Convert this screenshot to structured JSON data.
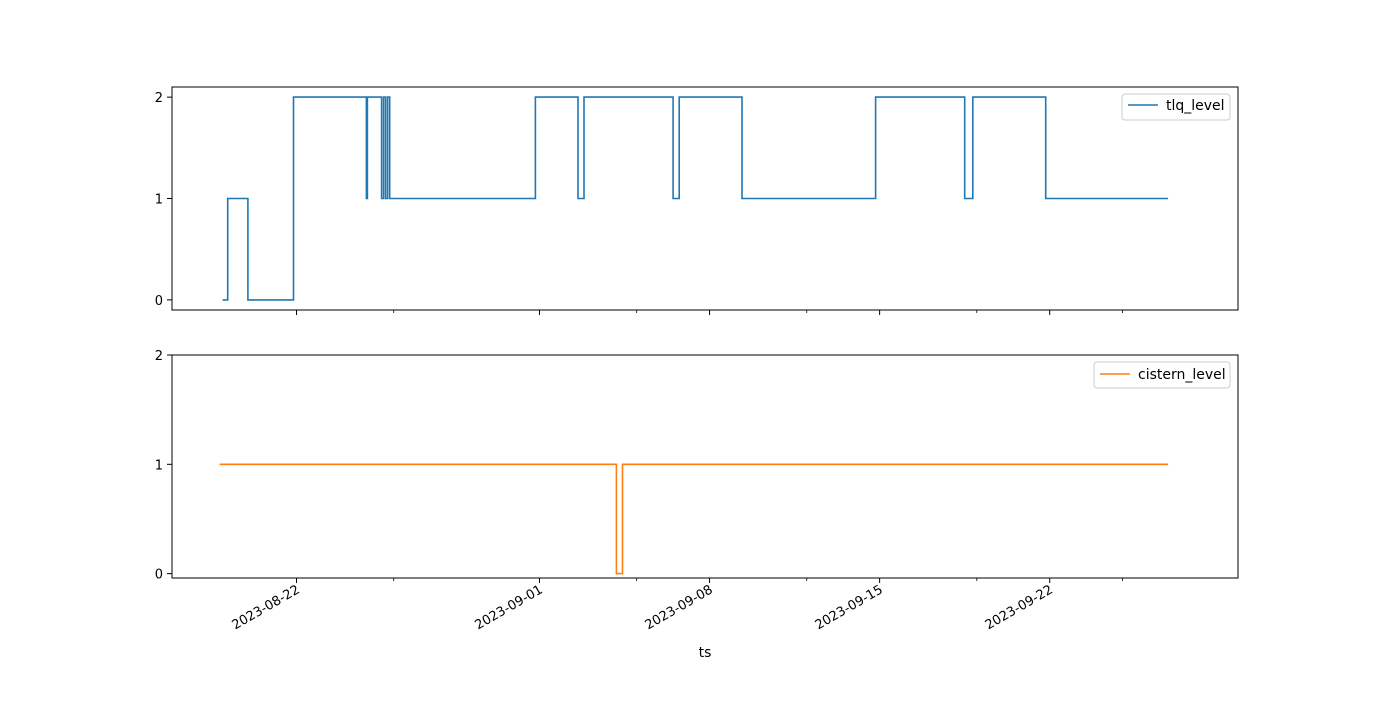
{
  "figure": {
    "xlabel": "ts"
  },
  "x_ticks_major": [
    "2023-08-22",
    "2023-09-01",
    "2023-09-08",
    "2023-09-15",
    "2023-09-22"
  ],
  "x_ticks_minor": [
    "2023-08-26",
    "2023-09-05",
    "2023-09-12",
    "2023-09-19",
    "2023-09-25"
  ],
  "chart_data": [
    {
      "type": "line",
      "step": true,
      "xlim": [
        "2023-08-16T21:00",
        "2023-09-29T18:00"
      ],
      "ylim": [
        -0.1,
        2.1
      ],
      "yticks": [
        0,
        1,
        2
      ],
      "legend": "top-right",
      "series": [
        {
          "name": "tlq_level",
          "color": "#1f77b4",
          "points": [
            [
              "2023-08-18T23:00",
              0
            ],
            [
              "2023-08-19T04:00",
              1
            ],
            [
              "2023-08-20T00:00",
              0
            ],
            [
              "2023-08-21T21:00",
              2
            ],
            [
              "2023-08-24T21:00",
              1
            ],
            [
              "2023-08-24T22:00",
              2
            ],
            [
              "2023-08-25T12:00",
              1
            ],
            [
              "2023-08-25T14:00",
              2
            ],
            [
              "2023-08-25T16:00",
              1
            ],
            [
              "2023-08-25T18:00",
              2
            ],
            [
              "2023-08-25T20:00",
              1
            ],
            [
              "2023-08-31T20:00",
              2
            ],
            [
              "2023-09-02T14:00",
              1
            ],
            [
              "2023-09-02T20:00",
              2
            ],
            [
              "2023-09-06T12:00",
              1
            ],
            [
              "2023-09-06T18:00",
              2
            ],
            [
              "2023-09-09T08:00",
              1
            ],
            [
              "2023-09-14T20:00",
              2
            ],
            [
              "2023-09-18T12:00",
              1
            ],
            [
              "2023-09-18T20:00",
              2
            ],
            [
              "2023-09-21T20:00",
              1
            ],
            [
              "2023-09-26T21:00",
              1
            ]
          ]
        }
      ]
    },
    {
      "type": "line",
      "step": true,
      "xlim": [
        "2023-08-16T21:00",
        "2023-09-29T18:00"
      ],
      "ylim": [
        -0.04,
        2
      ],
      "yticks": [
        0,
        1,
        2
      ],
      "legend": "top-right",
      "series": [
        {
          "name": "cistern_level",
          "color": "#ff7f0e",
          "points": [
            [
              "2023-08-18T20:00",
              1
            ],
            [
              "2023-09-04T04:00",
              0
            ],
            [
              "2023-09-04T10:00",
              1
            ],
            [
              "2023-09-26T21:00",
              1
            ]
          ]
        }
      ]
    }
  ]
}
